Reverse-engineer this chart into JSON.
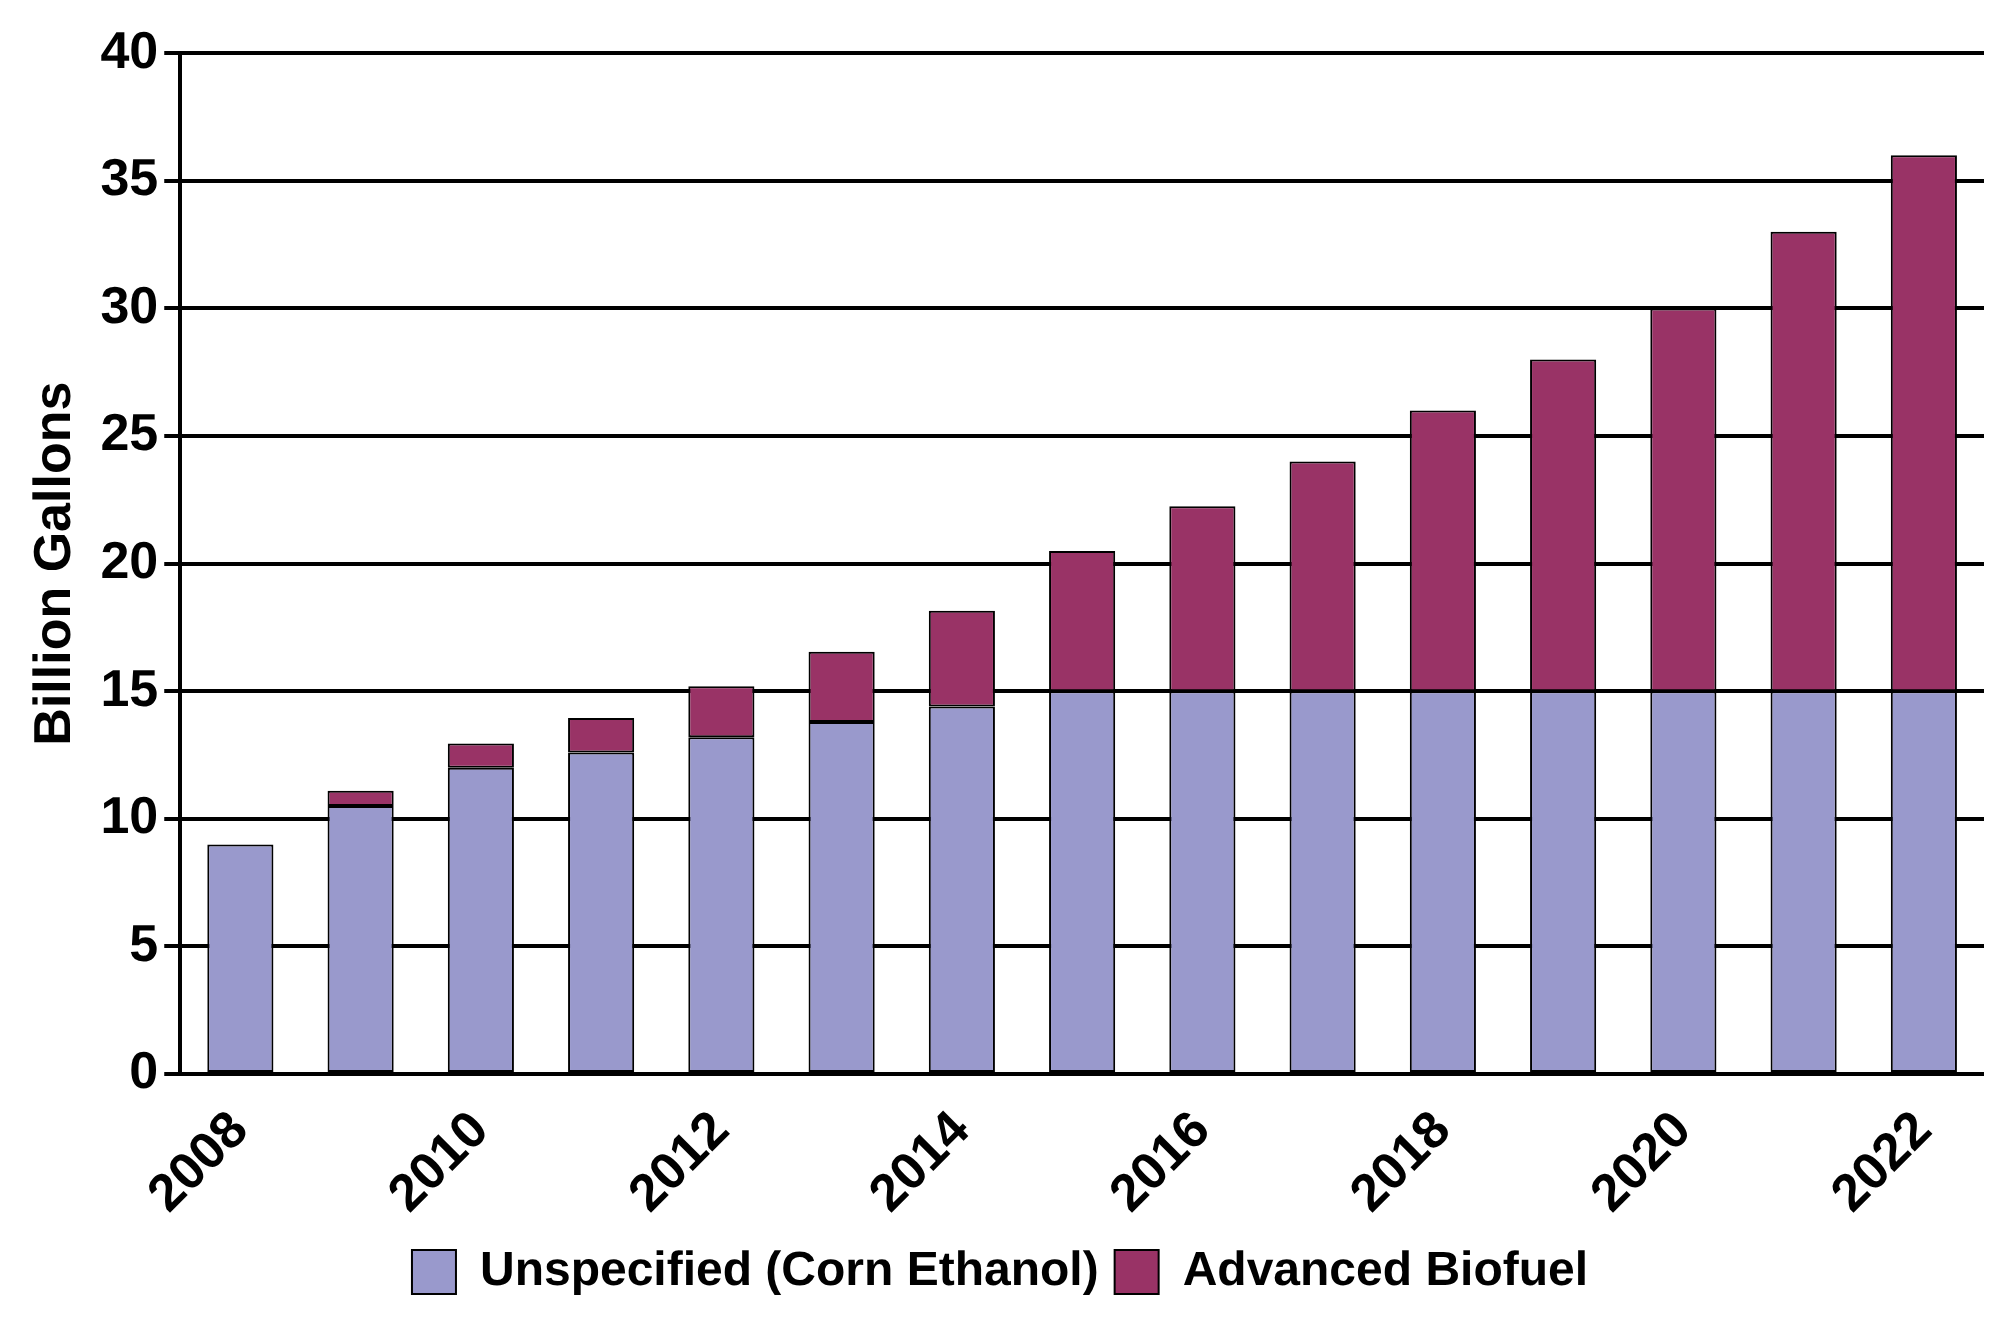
{
  "chart_data": {
    "type": "bar",
    "stacked": true,
    "ylabel": "Billion Gallons",
    "categories": [
      "2008",
      null,
      "2010",
      null,
      "2012",
      null,
      "2014",
      null,
      "2016",
      null,
      "2018",
      null,
      "2020",
      null,
      "2022"
    ],
    "series": [
      {
        "name": "Unspecified (Corn Ethanol)",
        "color": "#9999cc",
        "values": [
          9,
          10.5,
          12,
          12.6,
          13.2,
          13.8,
          14.4,
          15,
          15,
          15,
          15,
          15,
          15,
          15,
          15
        ]
      },
      {
        "name": "Advanced Biofuel",
        "color": "#993366",
        "values": [
          0,
          0.6,
          0.95,
          1.35,
          2,
          2.75,
          3.75,
          5.5,
          7.25,
          9,
          11,
          13,
          15,
          18,
          21
        ]
      }
    ],
    "ylim": [
      0,
      40
    ],
    "yticks": [
      0,
      5,
      10,
      15,
      20,
      25,
      30,
      35,
      40
    ],
    "grid": "y",
    "legend": "bottom"
  }
}
